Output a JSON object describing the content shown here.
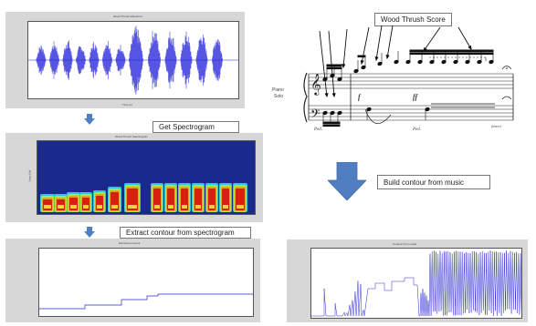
{
  "steps": {
    "get_spectrogram": "Get Spectrogram",
    "extract_contour": "Extract contour from spectrogram",
    "wood_thrush_score": "Wood Thrush Score",
    "build_contour": "Build contour from music"
  },
  "score": {
    "instrument_line1": "Piano",
    "instrument_line2": "Solo",
    "dyn1": "f",
    "dyn2": "ff",
    "ped1": "Ped.",
    "ped2": "Ped.",
    "tail": "(tener)"
  },
  "colors": {
    "waveform": "#1f1fd8",
    "spectro_bg": "#1a2a8c",
    "arrow": "#4f7ec2",
    "panel": "#d7d7d7"
  }
}
